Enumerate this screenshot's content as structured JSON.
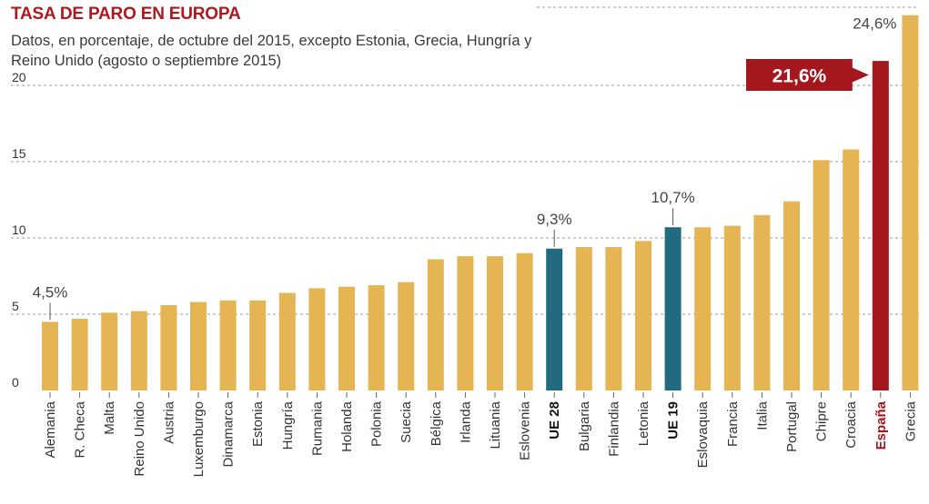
{
  "title": "TASA DE PARO EN EUROPA",
  "subtitle": "Datos, en porcentaje, de octubre del 2015, excepto Estonia, Grecia, Hungría y Reino Unido (agosto o septiembre 2015)",
  "colors": {
    "default": "#e5b554",
    "ue": "#216a80",
    "spain": "#a3171d",
    "grid": "#9a9a9a",
    "title": "#b0181e"
  },
  "chart_data": {
    "type": "bar",
    "title": "TASA DE PARO EN EUROPA",
    "subtitle": "Datos, en porcentaje, de octubre del 2015, excepto Estonia, Grecia, Hungría y Reino Unido (agosto o septiembre 2015)",
    "xlabel": "",
    "ylabel": "",
    "ylim": [
      0,
      25
    ],
    "yticks": [
      "0",
      "5",
      "10",
      "15",
      "20"
    ],
    "grid": true,
    "categories": [
      "Alemania",
      "R. Checa",
      "Malta",
      "Reino Unido",
      "Austria",
      "Luxemburgo",
      "Dinamarca",
      "Estonia",
      "Hungría",
      "Rumania",
      "Holanda",
      "Polonia",
      "Suecia",
      "Bélgica",
      "Irlanda",
      "Lituania",
      "Eslovenia",
      "UE 28",
      "Bulgaria",
      "Finlandia",
      "Letonia",
      "UE 19",
      "Eslovaquia",
      "Francia",
      "Italia",
      "Portugal",
      "Chipre",
      "Croacia",
      "España",
      "Grecia"
    ],
    "values": [
      4.5,
      4.7,
      5.1,
      5.2,
      5.6,
      5.8,
      5.9,
      5.9,
      6.4,
      6.7,
      6.8,
      6.9,
      7.1,
      8.6,
      8.8,
      8.8,
      9.0,
      9.3,
      9.4,
      9.4,
      9.8,
      10.7,
      10.7,
      10.8,
      11.5,
      12.4,
      15.1,
      15.8,
      21.6,
      24.6
    ],
    "highlight": {
      "UE 28": "ue",
      "UE 19": "ue",
      "España": "spain"
    },
    "data_labels": [
      {
        "category": "Alemania",
        "text": "4,5%"
      },
      {
        "category": "UE 28",
        "text": "9,3%"
      },
      {
        "category": "UE 19",
        "text": "10,7%"
      },
      {
        "category": "Grecia",
        "text": "24,6%"
      }
    ],
    "callout": {
      "category": "España",
      "text": "21,6%"
    }
  }
}
